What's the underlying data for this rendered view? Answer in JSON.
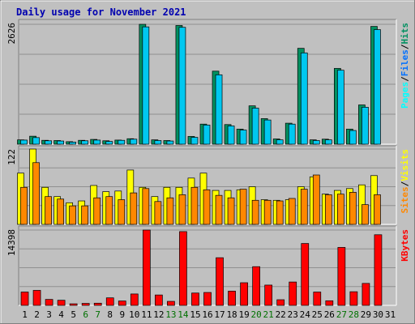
{
  "chart_data": {
    "type": "bar",
    "title": "Daily usage for November 2021",
    "categories": [
      "1",
      "2",
      "3",
      "4",
      "5",
      "6",
      "7",
      "8",
      "9",
      "10",
      "11",
      "12",
      "13",
      "14",
      "15",
      "16",
      "17",
      "18",
      "19",
      "20",
      "21",
      "22",
      "23",
      "24",
      "25",
      "26",
      "27",
      "28",
      "29",
      "30",
      "31"
    ],
    "weekend_days": [
      6,
      7,
      13,
      14,
      20,
      21,
      27,
      28
    ],
    "colors": {
      "title": "#0000b0",
      "hits": "#009060",
      "files": "#00c8f0",
      "pages": "#00ffff",
      "visits": "#ffff00",
      "sites": "#ff8800",
      "kbytes": "#ff0000",
      "weekend_label": "#007000",
      "weekday_label": "#000000",
      "background": "#c0c0c0",
      "plot": "#c0c0c0"
    },
    "panels": [
      {
        "id": "hits",
        "max_label": "2626",
        "ylim": [
          0,
          2626
        ],
        "legend": [
          {
            "text": "Pages",
            "color": "#00ffff"
          },
          {
            "text": "/",
            "color": "#000000"
          },
          {
            "text": "Files",
            "color": "#0070ff"
          },
          {
            "text": "/",
            "color": "#000000"
          },
          {
            "text": "Hits",
            "color": "#009060"
          }
        ],
        "series": [
          {
            "name": "Hits",
            "color": "#009060",
            "values": [
              95,
              175,
              85,
              80,
              55,
              85,
              105,
              75,
              90,
              120,
              2626,
              95,
              80,
              2600,
              170,
              440,
              1600,
              430,
              330,
              840,
              560,
              115,
              460,
              2100,
              95,
              110,
              1660,
              330,
              860,
              2580,
              0
            ]
          },
          {
            "name": "Files",
            "color": "#00c8f0",
            "values": [
              90,
              145,
              75,
              70,
              45,
              75,
              90,
              60,
              85,
              110,
              2570,
              80,
              70,
              2560,
              150,
              420,
              1520,
              400,
              310,
              790,
              530,
              95,
              440,
              2000,
              80,
              95,
              1620,
              300,
              810,
              2510,
              0
            ]
          }
        ]
      },
      {
        "id": "visits",
        "max_label": "122",
        "ylim": [
          0,
          122
        ],
        "legend": [
          {
            "text": "Sites",
            "color": "#ff8800"
          },
          {
            "text": "/",
            "color": "#000000"
          },
          {
            "text": "Visits",
            "color": "#ffff00"
          }
        ],
        "series": [
          {
            "name": "Visits",
            "color": "#ffff00",
            "values": [
              83,
              122,
              60,
              45,
              35,
              38,
              63,
              53,
              54,
              88,
              60,
              45,
              60,
              60,
              75,
              83,
              55,
              55,
              56,
              61,
              40,
              39,
              40,
              61,
              77,
              49,
              55,
              58,
              64,
              79,
              0
            ]
          },
          {
            "name": "Sites",
            "color": "#ff8800",
            "values": [
              60,
              100,
              45,
              41,
              30,
              30,
              43,
              45,
              40,
              51,
              58,
              37,
              43,
              48,
              60,
              56,
              47,
              43,
              57,
              39,
              39,
              38,
              42,
              57,
              80,
              48,
              49,
              52,
              32,
              48,
              0
            ]
          }
        ]
      },
      {
        "id": "kbytes",
        "max_label": "14398",
        "ylim": [
          0,
          14398
        ],
        "legend": [
          {
            "text": "KBytes",
            "color": "#ff0000"
          }
        ],
        "series": [
          {
            "name": "KBytes",
            "color": "#ff0000",
            "values": [
              2550,
              2870,
              1140,
              980,
              300,
              380,
              420,
              1440,
              840,
              2180,
              14398,
              1990,
              770,
              14100,
              2360,
              2470,
              9110,
              2720,
              4330,
              7400,
              3880,
              1080,
              4470,
              11830,
              2550,
              880,
              11080,
              2610,
              4200,
              13500,
              0
            ]
          }
        ]
      }
    ]
  }
}
